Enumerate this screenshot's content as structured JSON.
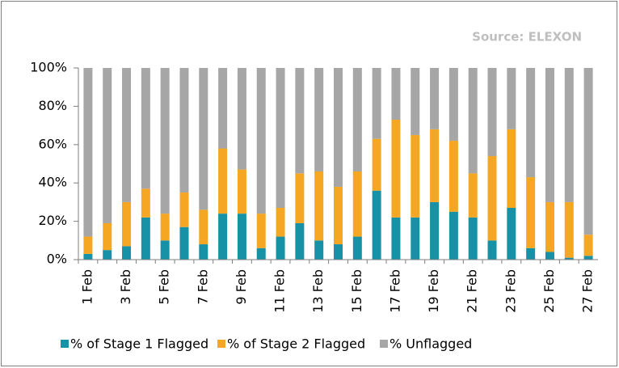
{
  "chart_data": {
    "type": "stacked_bar",
    "source": "Source: ELEXON",
    "categories": [
      "1 Feb",
      null,
      "3 Feb",
      null,
      "5 Feb",
      null,
      "7 Feb",
      null,
      "9 Feb",
      null,
      "11 Feb",
      null,
      "13 Feb",
      null,
      "15 Feb",
      null,
      "17 Feb",
      null,
      "19 Feb",
      null,
      "21 Feb",
      null,
      "23 Feb",
      null,
      "25 Feb",
      null,
      "27 Feb"
    ],
    "series": [
      {
        "name": "% of Stage 1 Flagged",
        "color": "#1791a6",
        "values": [
          3,
          5,
          7,
          22,
          10,
          17,
          8,
          24,
          24,
          6,
          12,
          19,
          10,
          8,
          12,
          36,
          22,
          22,
          30,
          25,
          22,
          10,
          27,
          6,
          4,
          1,
          2
        ]
      },
      {
        "name": "% of Stage 2 Flagged",
        "color": "#f5a623",
        "values": [
          9,
          14,
          23,
          15,
          14,
          18,
          18,
          34,
          23,
          18,
          15,
          26,
          36,
          30,
          34,
          27,
          51,
          43,
          38,
          37,
          23,
          44,
          41,
          37,
          26,
          29,
          11
        ]
      },
      {
        "name": "% Unflagged",
        "color": "#a6a6a6",
        "values": [
          88,
          81,
          70,
          63,
          76,
          65,
          74,
          42,
          53,
          76,
          73,
          55,
          54,
          62,
          54,
          37,
          27,
          35,
          32,
          38,
          55,
          46,
          32,
          57,
          70,
          70,
          87
        ]
      }
    ],
    "ylim": [
      0,
      100
    ],
    "yticks": [
      {
        "value": 0,
        "label": "0%"
      },
      {
        "value": 20,
        "label": "20%"
      },
      {
        "value": 40,
        "label": "40%"
      },
      {
        "value": 60,
        "label": "60%"
      },
      {
        "value": 80,
        "label": "80%"
      },
      {
        "value": 100,
        "label": "100%"
      }
    ]
  }
}
